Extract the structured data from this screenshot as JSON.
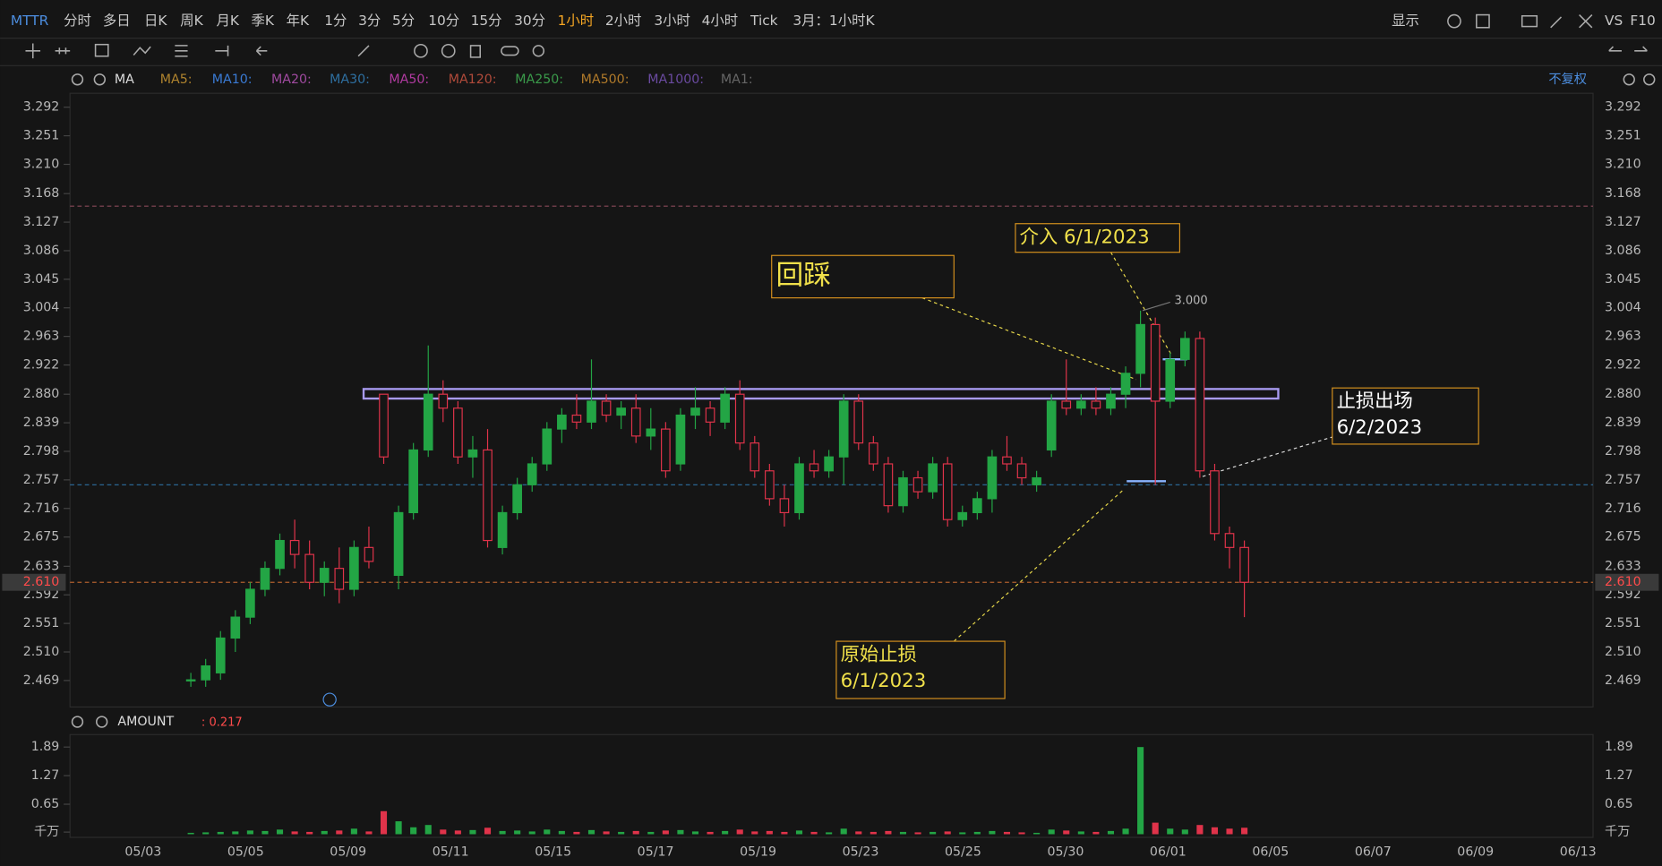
{
  "toolbar": {
    "symbol": "MTTR",
    "periods": [
      "分时",
      "多日",
      "日K",
      "周K",
      "月K",
      "季K",
      "年K",
      "1分",
      "3分",
      "5分",
      "10分",
      "15分",
      "30分",
      "1小时",
      "2小时",
      "3小时",
      "4小时",
      "Tick"
    ],
    "active_index": 13,
    "period_menu": "3月：1小时K",
    "right": [
      "显示",
      "VS",
      "F10"
    ]
  },
  "ma_legend": {
    "label": "MA",
    "items": [
      {
        "name": "MA5:",
        "color": "#b0842e"
      },
      {
        "name": "MA10:",
        "color": "#3a7bd5"
      },
      {
        "name": "MA20:",
        "color": "#a04aa0"
      },
      {
        "name": "MA30:",
        "color": "#2e6fa0"
      },
      {
        "name": "MA50:",
        "color": "#b03aa0"
      },
      {
        "name": "MA120:",
        "color": "#b04a3a"
      },
      {
        "name": "MA250:",
        "color": "#3a9a4a"
      },
      {
        "name": "MA500:",
        "color": "#b07a2a"
      },
      {
        "name": "MA1000:",
        "color": "#6a4aa0"
      },
      {
        "name": "MA1:",
        "color": "#666666"
      }
    ],
    "adjust": "不复权"
  },
  "chart_data": {
    "type": "candlestick",
    "categories": [
      "05/03",
      "05/05",
      "05/09",
      "05/11",
      "05/15",
      "05/17",
      "05/19",
      "05/23",
      "05/25",
      "05/30",
      "06/01",
      "06/05",
      "06/07",
      "06/09",
      "06/13"
    ],
    "colors": {
      "up": "#23a545",
      "down": "#e0334a"
    },
    "candles": [
      [
        2.47,
        2.48,
        2.46,
        2.47
      ],
      [
        2.47,
        2.5,
        2.46,
        2.49
      ],
      [
        2.48,
        2.54,
        2.47,
        2.53
      ],
      [
        2.53,
        2.57,
        2.51,
        2.56
      ],
      [
        2.56,
        2.61,
        2.55,
        2.6
      ],
      [
        2.6,
        2.64,
        2.59,
        2.63
      ],
      [
        2.63,
        2.68,
        2.62,
        2.67
      ],
      [
        2.67,
        2.7,
        2.63,
        2.65
      ],
      [
        2.65,
        2.67,
        2.6,
        2.61
      ],
      [
        2.61,
        2.64,
        2.59,
        2.63
      ],
      [
        2.63,
        2.66,
        2.58,
        2.6
      ],
      [
        2.6,
        2.67,
        2.59,
        2.66
      ],
      [
        2.66,
        2.69,
        2.63,
        2.64
      ],
      [
        2.88,
        2.88,
        2.78,
        2.79
      ],
      [
        2.62,
        2.72,
        2.6,
        2.71
      ],
      [
        2.71,
        2.81,
        2.7,
        2.8
      ],
      [
        2.8,
        2.95,
        2.79,
        2.88
      ],
      [
        2.88,
        2.9,
        2.84,
        2.86
      ],
      [
        2.86,
        2.87,
        2.78,
        2.79
      ],
      [
        2.79,
        2.82,
        2.76,
        2.8
      ],
      [
        2.8,
        2.83,
        2.66,
        2.67
      ],
      [
        2.66,
        2.72,
        2.65,
        2.71
      ],
      [
        2.71,
        2.76,
        2.7,
        2.75
      ],
      [
        2.75,
        2.79,
        2.74,
        2.78
      ],
      [
        2.78,
        2.84,
        2.77,
        2.83
      ],
      [
        2.83,
        2.86,
        2.81,
        2.85
      ],
      [
        2.85,
        2.88,
        2.83,
        2.84
      ],
      [
        2.84,
        2.93,
        2.83,
        2.87
      ],
      [
        2.87,
        2.88,
        2.84,
        2.85
      ],
      [
        2.85,
        2.87,
        2.83,
        2.86
      ],
      [
        2.86,
        2.88,
        2.81,
        2.82
      ],
      [
        2.82,
        2.86,
        2.8,
        2.83
      ],
      [
        2.83,
        2.84,
        2.76,
        2.77
      ],
      [
        2.78,
        2.86,
        2.77,
        2.85
      ],
      [
        2.85,
        2.89,
        2.83,
        2.86
      ],
      [
        2.86,
        2.87,
        2.82,
        2.84
      ],
      [
        2.84,
        2.89,
        2.83,
        2.88
      ],
      [
        2.88,
        2.9,
        2.8,
        2.81
      ],
      [
        2.81,
        2.82,
        2.76,
        2.77
      ],
      [
        2.77,
        2.78,
        2.72,
        2.73
      ],
      [
        2.73,
        2.75,
        2.69,
        2.71
      ],
      [
        2.71,
        2.79,
        2.7,
        2.78
      ],
      [
        2.78,
        2.8,
        2.76,
        2.77
      ],
      [
        2.77,
        2.8,
        2.76,
        2.79
      ],
      [
        2.79,
        2.88,
        2.75,
        2.87
      ],
      [
        2.87,
        2.88,
        2.8,
        2.81
      ],
      [
        2.81,
        2.82,
        2.77,
        2.78
      ],
      [
        2.78,
        2.79,
        2.71,
        2.72
      ],
      [
        2.72,
        2.77,
        2.71,
        2.76
      ],
      [
        2.76,
        2.77,
        2.73,
        2.74
      ],
      [
        2.74,
        2.79,
        2.73,
        2.78
      ],
      [
        2.78,
        2.79,
        2.69,
        2.7
      ],
      [
        2.7,
        2.72,
        2.69,
        2.71
      ],
      [
        2.71,
        2.74,
        2.7,
        2.73
      ],
      [
        2.73,
        2.8,
        2.71,
        2.79
      ],
      [
        2.79,
        2.82,
        2.77,
        2.78
      ],
      [
        2.78,
        2.79,
        2.75,
        2.76
      ],
      [
        2.75,
        2.77,
        2.74,
        2.76
      ],
      [
        2.8,
        2.88,
        2.79,
        2.87
      ],
      [
        2.87,
        2.93,
        2.85,
        2.86
      ],
      [
        2.86,
        2.88,
        2.85,
        2.87
      ],
      [
        2.87,
        2.89,
        2.85,
        2.86
      ],
      [
        2.86,
        2.89,
        2.85,
        2.88
      ],
      [
        2.88,
        2.92,
        2.86,
        2.91
      ],
      [
        2.91,
        3.0,
        2.89,
        2.98
      ],
      [
        2.98,
        2.99,
        2.75,
        2.87
      ],
      [
        2.87,
        2.94,
        2.86,
        2.93
      ],
      [
        2.93,
        2.97,
        2.92,
        2.96
      ],
      [
        2.96,
        2.97,
        2.76,
        2.77
      ],
      [
        2.77,
        2.78,
        2.67,
        2.68
      ],
      [
        2.68,
        2.69,
        2.63,
        2.66
      ],
      [
        2.66,
        2.67,
        2.56,
        2.61
      ]
    ],
    "ylim": [
      2.431,
      3.312
    ],
    "yticks": [
      3.292,
      3.251,
      {
        "value": 3.21,
        "label": "3.210"
      },
      3.168,
      3.127,
      3.086,
      3.045,
      3.004,
      2.963,
      2.922,
      {
        "value": 2.88,
        "label": "2.880"
      },
      2.839,
      2.798,
      2.757,
      2.716,
      2.675,
      2.633,
      2.592,
      2.551,
      {
        "value": 2.51,
        "label": "2.510"
      },
      2.469
    ],
    "current_price": {
      "value": 2.61,
      "label": "2.610"
    },
    "high_marker": {
      "value": 3.0,
      "label": "3.000"
    },
    "lines": [
      {
        "value": 3.15,
        "color": "#8a4a5a"
      },
      {
        "value": 2.75,
        "color": "#2e6fa0"
      },
      {
        "value": 2.61,
        "color": "#b0602e"
      }
    ],
    "annotations": [
      {
        "lines": [
          "回踩"
        ]
      },
      {
        "lines": [
          "介入 6/1/2023"
        ]
      },
      {
        "lines": [
          "止损出场",
          "6/2/2023"
        ]
      },
      {
        "lines": [
          "原始止损",
          "6/1/2023"
        ]
      }
    ],
    "volume": {
      "title": "AMOUNT",
      "readout": ": 0.217",
      "values": [
        0.03,
        0.04,
        0.05,
        0.06,
        0.08,
        0.07,
        0.1,
        0.06,
        0.05,
        0.07,
        0.08,
        0.12,
        0.06,
        0.5,
        0.28,
        0.15,
        0.2,
        0.1,
        0.08,
        0.09,
        0.14,
        0.07,
        0.08,
        0.06,
        0.1,
        0.07,
        0.05,
        0.09,
        0.06,
        0.05,
        0.07,
        0.05,
        0.08,
        0.09,
        0.06,
        0.05,
        0.07,
        0.1,
        0.06,
        0.07,
        0.05,
        0.08,
        0.05,
        0.04,
        0.12,
        0.06,
        0.05,
        0.07,
        0.05,
        0.04,
        0.05,
        0.06,
        0.04,
        0.05,
        0.07,
        0.05,
        0.04,
        0.03,
        0.1,
        0.08,
        0.06,
        0.05,
        0.07,
        0.12,
        1.89,
        0.25,
        0.12,
        0.1,
        0.2,
        0.15,
        0.12,
        0.14
      ],
      "ylim": [
        0,
        2.0
      ],
      "yticks": [
        1.89,
        1.27,
        0.65,
        {
          "value": 0,
          "label": "千万"
        }
      ]
    }
  }
}
